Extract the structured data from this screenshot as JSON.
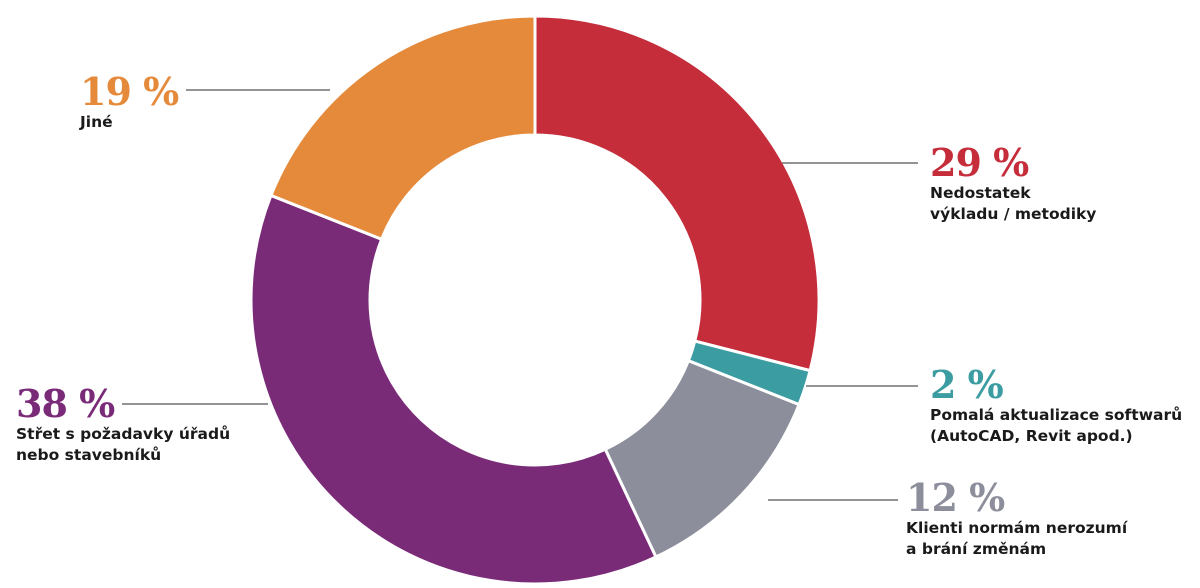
{
  "chart_data": {
    "type": "pie",
    "donut": true,
    "slices": [
      {
        "label_lines": [
          "Nedostatek",
          "výkladu / metodiky"
        ],
        "value": 29,
        "value_text": "29 %",
        "color": "#c52d3b"
      },
      {
        "label_lines": [
          "Pomalá aktualizace softwarů",
          "(AutoCAD, Revit apod.)"
        ],
        "value": 2,
        "value_text": "2 %",
        "color": "#3b9ca1"
      },
      {
        "label_lines": [
          "Klienti normám nerozumí",
          "a brání změnám"
        ],
        "value": 12,
        "value_text": "12 %",
        "color": "#8c8e9b"
      },
      {
        "label_lines": [
          "Střet s požadavky úřadů",
          "nebo stavebníků"
        ],
        "value": 38,
        "value_text": "38 %",
        "color": "#7a2b78"
      },
      {
        "label_lines": [
          "Jiné"
        ],
        "value": 19,
        "value_text": "19 %",
        "color": "#e58a3b"
      }
    ],
    "start": "12 o'clock",
    "direction": "clockwise",
    "legend": "none"
  }
}
